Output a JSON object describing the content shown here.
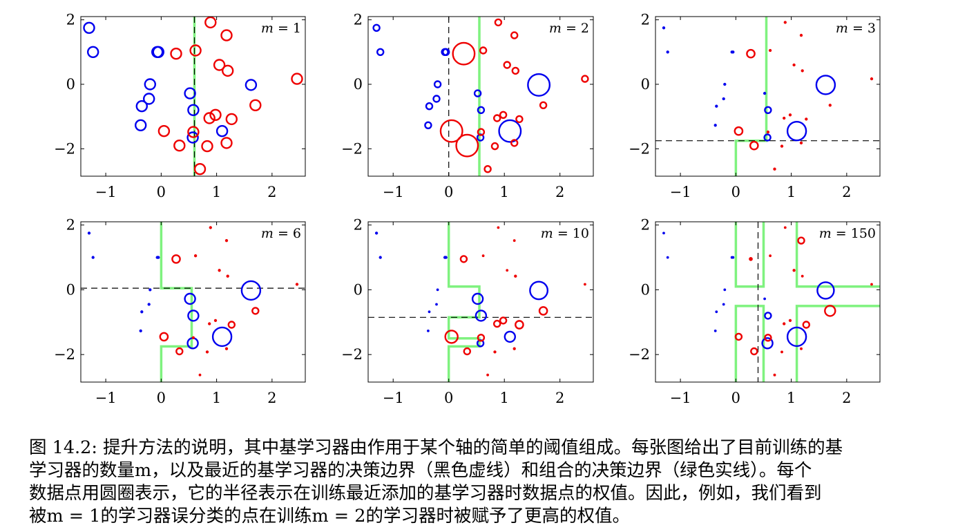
{
  "chart_data": {
    "type": "scatter",
    "xlim": [
      -1.45,
      2.6
    ],
    "ylim": [
      -2.85,
      2.1
    ],
    "xticks": [
      -1,
      0,
      1,
      2
    ],
    "yticks": [
      -2,
      0,
      2
    ],
    "xtick_labels": [
      "−1",
      "0",
      "1",
      "2"
    ],
    "ytick_labels": [
      "−2",
      "0",
      "2"
    ],
    "grid": false,
    "colors": {
      "class_blue": "#0000ee",
      "class_red": "#ee0000",
      "combined_boundary": "#7ff27f",
      "latest_boundary": "#000000"
    },
    "points": {
      "blue": [
        [
          -1.3,
          1.75
        ],
        [
          -1.23,
          1.0
        ],
        [
          -0.07,
          1.0
        ],
        [
          -0.05,
          1.0
        ],
        [
          -0.2,
          0.0
        ],
        [
          -0.22,
          -0.45
        ],
        [
          -0.35,
          -0.68
        ],
        [
          -0.37,
          -1.27
        ],
        [
          0.52,
          -0.28
        ],
        [
          0.58,
          -0.8
        ],
        [
          0.57,
          -1.65
        ],
        [
          1.1,
          -1.45
        ],
        [
          1.62,
          -0.02
        ]
      ],
      "red": [
        [
          0.89,
          1.92
        ],
        [
          1.18,
          1.52
        ],
        [
          0.62,
          1.05
        ],
        [
          0.27,
          0.95
        ],
        [
          1.05,
          0.6
        ],
        [
          1.2,
          0.42
        ],
        [
          2.45,
          0.17
        ],
        [
          1.7,
          -0.65
        ],
        [
          0.98,
          -0.95
        ],
        [
          0.87,
          -1.05
        ],
        [
          1.27,
          -1.08
        ],
        [
          0.05,
          -1.45
        ],
        [
          0.58,
          -1.48
        ],
        [
          1.18,
          -1.82
        ],
        [
          0.33,
          -1.9
        ],
        [
          0.83,
          -1.92
        ],
        [
          0.7,
          -2.63
        ]
      ]
    },
    "panels": [
      {
        "label_var": "m",
        "label_rest": " = 1",
        "blue_r": [
          1,
          1,
          1,
          1,
          1,
          1,
          1,
          1,
          1,
          1,
          1,
          1,
          1
        ],
        "red_r": [
          1,
          1,
          1,
          1,
          1,
          1,
          1,
          1,
          1,
          1,
          1,
          1,
          1,
          1,
          1,
          1,
          1
        ],
        "dashed": [
          [
            [
              0.6,
              2.1
            ],
            [
              0.6,
              -2.85
            ]
          ]
        ],
        "green": [
          [
            [
              0.6,
              2.1
            ],
            [
              0.6,
              -2.85
            ]
          ]
        ]
      },
      {
        "label_var": "m",
        "label_rest": " = 2",
        "blue_r": [
          0.6,
          0.6,
          0.6,
          0.6,
          0.6,
          0.6,
          0.6,
          0.6,
          0.6,
          0.6,
          0.6,
          2.1,
          2.1
        ],
        "red_r": [
          0.6,
          0.6,
          0.6,
          2.1,
          0.6,
          0.6,
          0.6,
          0.6,
          0.6,
          0.6,
          0.6,
          2.1,
          0.6,
          0.6,
          2.1,
          0.6,
          0.6
        ],
        "dashed": [
          [
            [
              0,
              2.1
            ],
            [
              0,
              -2.85
            ]
          ]
        ],
        "green": [
          [
            [
              0.55,
              2.1
            ],
            [
              0.55,
              -2.85
            ]
          ]
        ]
      },
      {
        "label_var": "m",
        "label_rest": " = 3",
        "blue_r": [
          0.35,
          0.35,
          0.35,
          0.35,
          0.35,
          0.35,
          0.35,
          0.35,
          0.35,
          0.6,
          0.6,
          1.8,
          1.8
        ],
        "red_r": [
          0.35,
          0.35,
          0.35,
          0.75,
          0.35,
          0.35,
          0.35,
          0.35,
          0.35,
          0.35,
          0.35,
          0.75,
          0.35,
          0.35,
          0.75,
          0.35,
          0.35
        ],
        "dashed": [
          [
            [
              -1.45,
              -1.75
            ],
            [
              2.6,
              -1.75
            ]
          ]
        ],
        "green": [
          [
            [
              0.55,
              2.1
            ],
            [
              0.55,
              -1.75
            ],
            [
              0,
              -1.75
            ],
            [
              0,
              -2.85
            ]
          ]
        ]
      },
      {
        "label_var": "m",
        "label_rest": " = 6",
        "blue_r": [
          0.35,
          0.35,
          0.35,
          0.35,
          0.35,
          0.35,
          0.35,
          0.35,
          1.0,
          1.0,
          1.0,
          1.8,
          1.8
        ],
        "red_r": [
          0.35,
          0.35,
          0.35,
          0.75,
          0.35,
          0.35,
          0.35,
          0.6,
          0.35,
          0.35,
          0.6,
          0.75,
          0.35,
          0.35,
          0.6,
          0.35,
          0.25
        ],
        "dashed": [
          [
            [
              -1.45,
              0.05
            ],
            [
              2.6,
              0.05
            ]
          ]
        ],
        "green": [
          [
            [
              0,
              2.1
            ],
            [
              0,
              0.05
            ],
            [
              0.55,
              0.05
            ],
            [
              0.55,
              -1.75
            ],
            [
              0,
              -1.75
            ],
            [
              0,
              -2.85
            ]
          ]
        ]
      },
      {
        "label_var": "m",
        "label_rest": " = 10",
        "blue_r": [
          0.35,
          0.35,
          0.35,
          0.35,
          0.2,
          0.2,
          0.2,
          0.2,
          1.0,
          1.0,
          0.6,
          1.0,
          1.7
        ],
        "red_r": [
          0.25,
          0.25,
          0.25,
          0.6,
          0.25,
          0.35,
          0.25,
          0.75,
          0.6,
          0.6,
          0.75,
          1.2,
          0.6,
          0.35,
          0.6,
          0.35,
          0.25
        ],
        "dashed": [
          [
            [
              -1.45,
              -0.85
            ],
            [
              2.6,
              -0.85
            ]
          ]
        ],
        "green": [
          [
            [
              0,
              2.1
            ],
            [
              0,
              0.1
            ],
            [
              0.55,
              0.1
            ],
            [
              0.55,
              -0.85
            ],
            [
              0,
              -0.85
            ],
            [
              0,
              -1.5
            ],
            [
              0.55,
              -1.5
            ],
            [
              0.55,
              -1.75
            ],
            [
              0,
              -1.75
            ],
            [
              0,
              -2.85
            ]
          ]
        ]
      },
      {
        "label_var": "m",
        "label_rest": " = 150",
        "blue_r": [
          0.25,
          0.2,
          0.3,
          0.3,
          0.15,
          0.15,
          0.15,
          0.15,
          0.15,
          0.6,
          1.0,
          1.8,
          1.6
        ],
        "red_r": [
          0.2,
          0.6,
          0.2,
          0.5,
          0.35,
          0.25,
          0.15,
          1.0,
          0.35,
          0.35,
          0.6,
          0.6,
          0.6,
          0.3,
          0.6,
          0.3,
          0.3
        ],
        "dashed": [
          [
            [
              0.4,
              2.1
            ],
            [
              0.4,
              -2.85
            ]
          ]
        ],
        "green": [
          [
            [
              0,
              2.1
            ],
            [
              0,
              0.1
            ],
            [
              0.5,
              0.1
            ],
            [
              0.5,
              2.1
            ]
          ],
          [
            [
              1.1,
              2.1
            ],
            [
              1.1,
              0.1
            ],
            [
              2.6,
              0.1
            ]
          ],
          [
            [
              0,
              -2.85
            ],
            [
              0,
              -0.5
            ],
            [
              0.5,
              -0.5
            ],
            [
              0.5,
              -2.85
            ]
          ],
          [
            [
              1.1,
              -2.85
            ],
            [
              1.1,
              -0.5
            ],
            [
              2.6,
              -0.5
            ]
          ]
        ]
      }
    ]
  },
  "caption": {
    "lines": [
      "图 14.2: 提升方法的说明，其中基学习器由作用于某个轴的简单的阈值组成。每张图给出了目前训练的基",
      "学习器的数量m，以及最近的基学习器的决策边界（黑色虚线）和组合的决策边界（绿色实线）。每个",
      "数据点用圆圈表示，它的半径表示在训练最近添加的基学习器时数据点的权值。因此，例如，我们看到",
      "被m = 1的学习器误分类的点在训练m = 2的学习器时被赋予了更高的权值。"
    ]
  }
}
